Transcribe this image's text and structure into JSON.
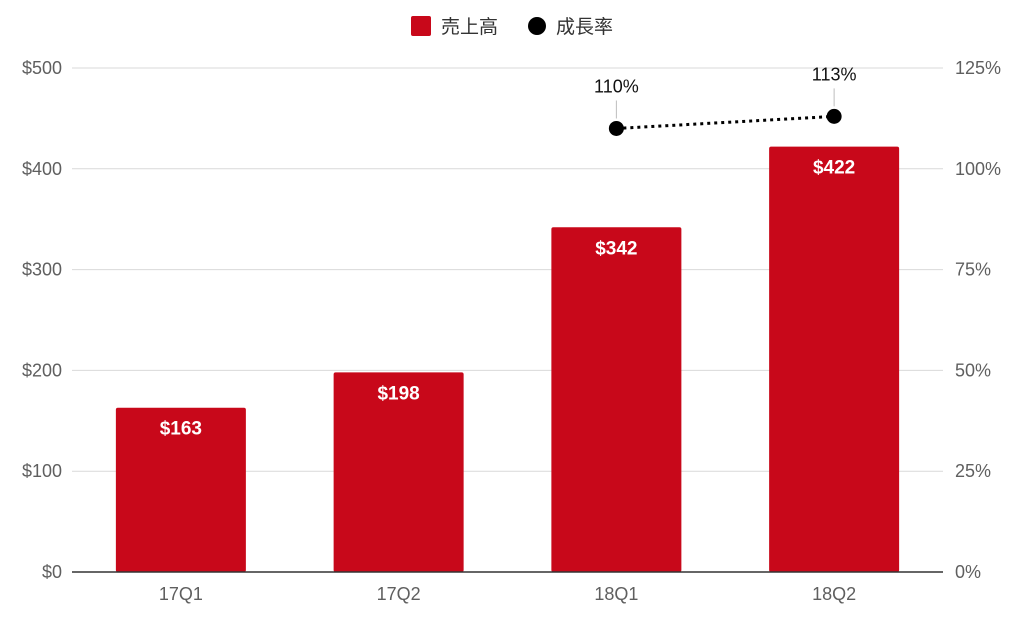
{
  "chart_data": {
    "type": "bar",
    "categories": [
      "17Q1",
      "17Q2",
      "18Q1",
      "18Q2"
    ],
    "series": [
      {
        "name": "売上高",
        "kind": "bar",
        "axis": "left",
        "color": "#c8081a",
        "values": [
          163,
          198,
          342,
          422
        ],
        "labels": [
          "$163",
          "$198",
          "$342",
          "$422"
        ]
      },
      {
        "name": "成長率",
        "kind": "line",
        "axis": "right",
        "color": "#000000",
        "line_style": "dotted",
        "values": [
          null,
          null,
          110,
          113
        ],
        "labels": [
          "",
          "",
          "110%",
          "113%"
        ]
      }
    ],
    "y_left": {
      "ylim": [
        0,
        500
      ],
      "ticks": [
        0,
        100,
        200,
        300,
        400,
        500
      ],
      "tick_labels": [
        "$0",
        "$100",
        "$200",
        "$300",
        "$400",
        "$500"
      ]
    },
    "y_right": {
      "ylim": [
        0,
        125
      ],
      "ticks": [
        0,
        25,
        50,
        75,
        100,
        125
      ],
      "tick_labels": [
        "0%",
        "25%",
        "50%",
        "75%",
        "100%",
        "125%"
      ]
    },
    "title": "",
    "xlabel": "",
    "ylabel": "",
    "legend_position": "top-center",
    "grid": true
  }
}
